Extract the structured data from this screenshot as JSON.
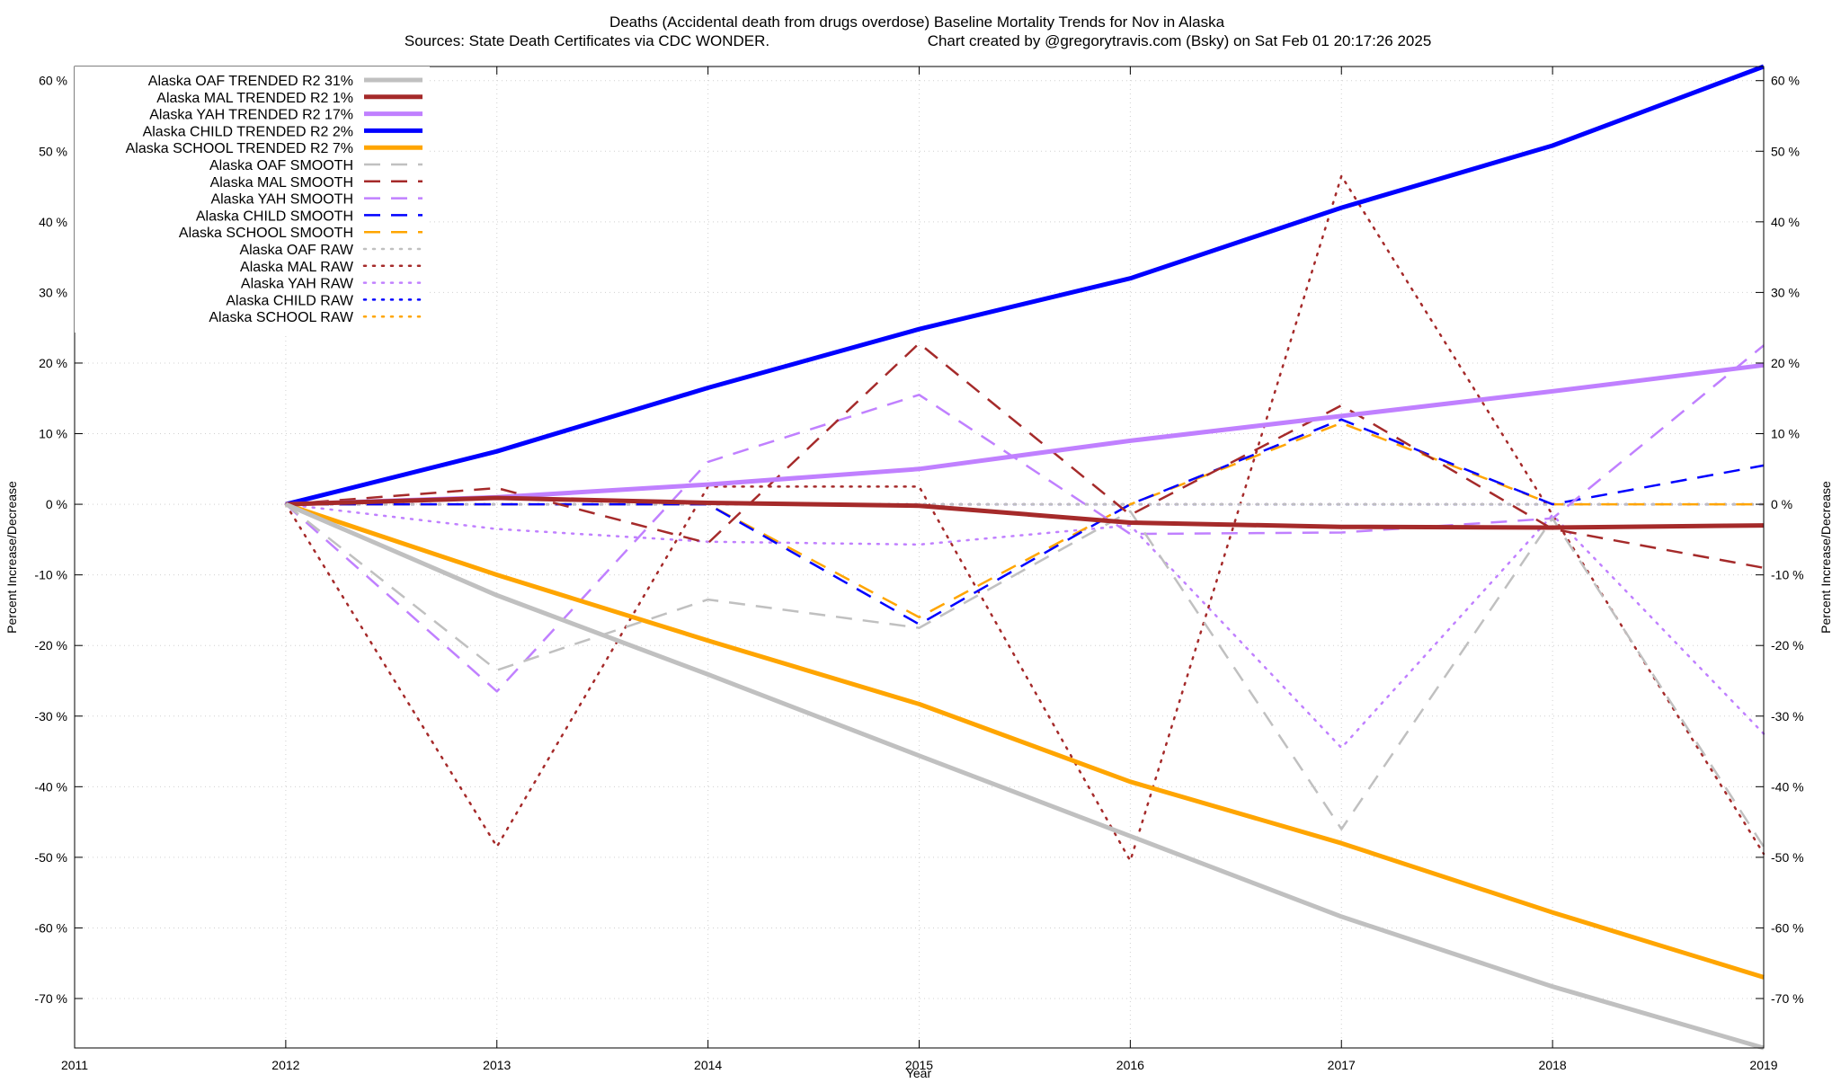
{
  "chart_data": {
    "type": "line",
    "title": "Deaths (Accidental death from drugs overdose)  Baseline Mortality Trends for Nov in Alaska",
    "subtitle_left": "Sources: State Death Certificates via CDC WONDER.",
    "subtitle_right": "Chart created by @gregorytravis.com (Bsky) on Sat Feb 01 20:17:26 2025",
    "xlabel": "Year",
    "ylabel": "Percent Increase/Decrease",
    "ylabel_right": "Percent Increase/Decrease",
    "xlim": [
      2011,
      2019
    ],
    "ylim": [
      -77,
      62
    ],
    "x_ticks": [
      2011,
      2012,
      2013,
      2014,
      2015,
      2016,
      2017,
      2018,
      2019
    ],
    "x_tick_labels": [
      "2011",
      "2012",
      "2013",
      "2014",
      "2015",
      "2016",
      "2017",
      "2018",
      "2019"
    ],
    "y_ticks": [
      60,
      50,
      40,
      30,
      20,
      10,
      0,
      -10,
      -20,
      -30,
      -40,
      -50,
      -60,
      -70
    ],
    "y_tick_labels": [
      "60 %",
      "50 %",
      "40 %",
      "30 %",
      "20 %",
      "10 %",
      "0 %",
      "-10 %",
      "-20 %",
      "-30 %",
      "-40 %",
      "-50 %",
      "-60 %",
      "-70 %"
    ],
    "grid": true,
    "legend_position": "top-left",
    "series": [
      {
        "name": "Alaska OAF TRENDED R2  31%",
        "color": "#c0c0c0",
        "style": "solid",
        "width": 5,
        "x": [
          2012,
          2013,
          2014,
          2015,
          2016,
          2017,
          2018,
          2019
        ],
        "values": [
          0,
          -12.9,
          -24.1,
          -35.6,
          -47.0,
          -58.4,
          -68.3,
          -77.0
        ]
      },
      {
        "name": "Alaska MAL TRENDED R2   1%",
        "color": "#a52a2a",
        "style": "solid",
        "width": 5,
        "x": [
          2012,
          2013,
          2014,
          2015,
          2016,
          2017,
          2018,
          2019
        ],
        "values": [
          0,
          0.9,
          0.2,
          -0.2,
          -2.6,
          -3.2,
          -3.3,
          -3.0
        ]
      },
      {
        "name": "Alaska YAH TRENDED R2  17%",
        "color": "#c080ff",
        "style": "solid",
        "width": 5,
        "x": [
          2012,
          2013,
          2014,
          2015,
          2016,
          2017,
          2018,
          2019
        ],
        "values": [
          0,
          1.0,
          2.8,
          5.0,
          9.0,
          12.5,
          16.0,
          19.7
        ]
      },
      {
        "name": "Alaska CHILD TRENDED R2   2%",
        "color": "#0000ff",
        "style": "solid",
        "width": 5,
        "x": [
          2012,
          2013,
          2014,
          2015,
          2016,
          2017,
          2018,
          2019
        ],
        "values": [
          0,
          7.5,
          16.5,
          24.8,
          32.0,
          42.0,
          50.8,
          62.0
        ]
      },
      {
        "name": "Alaska SCHOOL TRENDED R2   7%",
        "color": "#ffa500",
        "style": "solid",
        "width": 5,
        "x": [
          2012,
          2013,
          2014,
          2015,
          2016,
          2017,
          2018,
          2019
        ],
        "values": [
          0,
          -10.0,
          -19.3,
          -28.3,
          -39.3,
          -48.0,
          -57.8,
          -67.0
        ]
      },
      {
        "name": "Alaska OAF SMOOTH",
        "color": "#c0c0c0",
        "style": "dashed",
        "width": 2.5,
        "x": [
          2012,
          2013,
          2014,
          2015,
          2016,
          2017,
          2018,
          2019
        ],
        "values": [
          0,
          -23.5,
          -13.5,
          -17.5,
          -1.0,
          -46.0,
          -2.0,
          -48.5
        ]
      },
      {
        "name": "Alaska MAL SMOOTH",
        "color": "#a52a2a",
        "style": "dashed",
        "width": 2.5,
        "x": [
          2012,
          2013,
          2014,
          2015,
          2016,
          2017,
          2018,
          2019
        ],
        "values": [
          0,
          2.3,
          -5.5,
          22.8,
          -1.5,
          14.0,
          -3.5,
          -9.0
        ]
      },
      {
        "name": "Alaska YAH SMOOTH",
        "color": "#c080ff",
        "style": "dashed",
        "width": 2.5,
        "x": [
          2012,
          2013,
          2014,
          2015,
          2016,
          2017,
          2018,
          2019
        ],
        "values": [
          0,
          -26.5,
          6.0,
          15.5,
          -4.2,
          -4.0,
          -2.0,
          22.5
        ]
      },
      {
        "name": "Alaska CHILD SMOOTH",
        "color": "#0000ff",
        "style": "dashed",
        "width": 2.5,
        "x": [
          2012,
          2013,
          2014,
          2015,
          2016,
          2017,
          2018,
          2019
        ],
        "values": [
          0,
          0,
          0,
          -17.0,
          0,
          12.0,
          0,
          5.5
        ]
      },
      {
        "name": "Alaska SCHOOL SMOOTH",
        "color": "#ffa500",
        "style": "dashed",
        "width": 2.5,
        "x": [
          2012,
          2013,
          2014,
          2015,
          2016,
          2017,
          2018,
          2019
        ],
        "values": [
          0,
          0,
          0,
          -16.0,
          0,
          11.5,
          0,
          0
        ]
      },
      {
        "name": "Alaska OAF RAW",
        "color": "#c0c0c0",
        "style": "dotted",
        "width": 2.5,
        "x": [
          2012,
          2013,
          2014,
          2015,
          2016,
          2017,
          2018,
          2019
        ],
        "values": [
          0,
          0,
          0,
          0,
          0,
          0,
          0,
          0
        ]
      },
      {
        "name": "Alaska MAL RAW",
        "color": "#a52a2a",
        "style": "dotted",
        "width": 2.5,
        "x": [
          2012,
          2013,
          2014,
          2015,
          2016,
          2017,
          2018,
          2019
        ],
        "values": [
          0,
          -48.5,
          2.5,
          2.5,
          -50.5,
          46.5,
          -1.5,
          -49.5
        ]
      },
      {
        "name": "Alaska YAH RAW",
        "color": "#c080ff",
        "style": "dotted",
        "width": 2.5,
        "x": [
          2012,
          2013,
          2014,
          2015,
          2016,
          2017,
          2018,
          2019
        ],
        "values": [
          0,
          -3.5,
          -5.3,
          -5.7,
          -3.0,
          -34.5,
          -1.5,
          -32.5
        ]
      },
      {
        "name": "Alaska CHILD RAW",
        "color": "#0000ff",
        "style": "dotted",
        "width": 2.5,
        "x": [
          2012,
          2013,
          2014,
          2015,
          2016,
          2017,
          2018,
          2019
        ],
        "values": [
          0,
          0,
          0,
          0,
          0,
          0,
          0,
          0
        ]
      },
      {
        "name": "Alaska SCHOOL RAW",
        "color": "#ffa500",
        "style": "dotted",
        "width": 2.5,
        "x": [
          2012,
          2013,
          2014,
          2015,
          2016,
          2017,
          2018,
          2019
        ],
        "values": [
          0,
          0,
          0,
          0,
          0,
          0,
          0,
          0
        ]
      }
    ]
  }
}
